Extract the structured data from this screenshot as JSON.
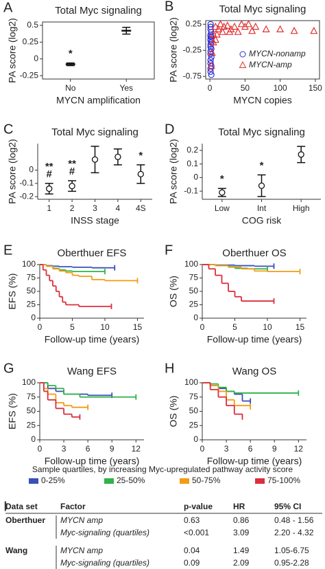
{
  "chart_data": [
    {
      "type": "errorbar",
      "label": "A",
      "title": "Total Myc signaling",
      "xlabel": "MYCN amplification",
      "ylabel": "PA score (log2)",
      "categories": [
        "No",
        "Yes"
      ],
      "values": [
        -0.08,
        0.42
      ],
      "errors": [
        0.02,
        0.05
      ],
      "marker": "dash",
      "frame": true,
      "ylim": [
        -0.3,
        0.55
      ],
      "yticks": [
        0.5,
        0.25,
        0,
        -0.25
      ],
      "annotations": [
        {
          "category": "No",
          "text": "*"
        }
      ]
    },
    {
      "type": "scatter",
      "label": "B",
      "title": "Total Myc signaling",
      "xlabel": "MYCN copies",
      "ylabel": "PA score (log2)",
      "frame": true,
      "xlim": [
        -6,
        156
      ],
      "xticks": [
        0,
        50,
        100,
        150
      ],
      "ylim": [
        -0.8,
        0.32
      ],
      "yticks": [
        0.25,
        -0.25,
        -0.75
      ],
      "legend_loc": "lower right",
      "series": [
        {
          "name": "MYCN-nonamp",
          "color": "#2b2bd6",
          "marker": "circle",
          "x": [
            1,
            1,
            1,
            2,
            1,
            1,
            2,
            1,
            1,
            2,
            1,
            1,
            2,
            1,
            1,
            2,
            1,
            1,
            2,
            1,
            1,
            2
          ],
          "values": [
            0.25,
            0.2,
            0.15,
            0.1,
            0.05,
            0.02,
            0,
            -0.03,
            -0.06,
            -0.1,
            -0.14,
            -0.18,
            -0.22,
            -0.27,
            -0.32,
            -0.38,
            -0.44,
            -0.5,
            -0.55,
            -0.6,
            -0.66,
            -0.72
          ]
        },
        {
          "name": "MYCN-amp",
          "color": "#e03030",
          "marker": "triangle",
          "x": [
            2,
            3,
            5,
            5,
            8,
            8,
            10,
            12,
            15,
            18,
            20,
            25,
            28,
            30,
            35,
            40,
            45,
            50,
            55,
            60,
            65,
            80,
            100,
            120,
            148
          ],
          "values": [
            -0.55,
            -0.3,
            0.05,
            -0.1,
            0.2,
            -0.05,
            0.05,
            0.15,
            0.25,
            0.1,
            0.2,
            0.22,
            0.1,
            0.15,
            0.2,
            0.1,
            0.25,
            0.2,
            0.25,
            0.12,
            0.2,
            0.15,
            0.15,
            0.12,
            0.12
          ]
        }
      ]
    },
    {
      "type": "errorbar",
      "label": "C",
      "title": "Total Myc signaling",
      "xlabel": "INSS stage",
      "ylabel": "PA score (log2)",
      "categories": [
        "1",
        "2",
        "3",
        "4",
        "4S"
      ],
      "values": [
        -0.14,
        -0.12,
        0.08,
        0.1,
        -0.03
      ],
      "errors": [
        0.04,
        0.04,
        0.1,
        0.06,
        0.07
      ],
      "marker": "circle",
      "ylim": [
        -0.22,
        0.2
      ],
      "yticks": [
        0,
        -0.1,
        -0.2
      ],
      "annotations": [
        {
          "category": "1",
          "text": "#"
        },
        {
          "category": "1",
          "text": "**"
        },
        {
          "category": "2",
          "text": "#"
        },
        {
          "category": "2",
          "text": "**"
        },
        {
          "category": "4S",
          "text": "*"
        }
      ]
    },
    {
      "type": "errorbar",
      "label": "D",
      "title": "Total Myc signaling",
      "xlabel": "COG risk",
      "ylabel": "PA score (log2)",
      "categories": [
        "Low",
        "Int",
        "High"
      ],
      "values": [
        -0.11,
        -0.06,
        0.17
      ],
      "errors": [
        0.03,
        0.08,
        0.06
      ],
      "marker": "circle",
      "ylim": [
        -0.16,
        0.25
      ],
      "yticks": [
        0.2,
        0.1,
        0,
        -0.1
      ],
      "annotations": [
        {
          "category": "Low",
          "text": "*"
        },
        {
          "category": "Int",
          "text": "*"
        }
      ]
    },
    {
      "type": "km",
      "label": "E",
      "title": "Oberthuer EFS",
      "xlabel": "Follow-up time (years)",
      "ylabel": "EFS (%)",
      "xlim": [
        0,
        16
      ],
      "xticks": [
        0,
        5,
        10,
        15
      ],
      "ylim": [
        0,
        100
      ],
      "yticks": [
        0,
        25,
        50,
        75,
        100
      ],
      "series": [
        {
          "color": "#3b4fb8",
          "x": [
            0,
            1,
            2,
            3,
            5,
            8,
            10,
            11.5
          ],
          "values": [
            100,
            98,
            97,
            96,
            95,
            94,
            94,
            94
          ]
        },
        {
          "color": "#2fb34a",
          "x": [
            0,
            1,
            2,
            3,
            4,
            5,
            7,
            10
          ],
          "values": [
            100,
            97,
            93,
            90,
            88,
            87,
            87,
            87
          ]
        },
        {
          "color": "#f39c12",
          "x": [
            0,
            1,
            2,
            3,
            4,
            5,
            6,
            8,
            10,
            15
          ],
          "values": [
            100,
            97,
            92,
            88,
            85,
            80,
            78,
            72,
            70,
            70
          ]
        },
        {
          "color": "#d9303c",
          "x": [
            0,
            0.5,
            1,
            1.5,
            2,
            2.5,
            3,
            3.5,
            4,
            6,
            11
          ],
          "values": [
            100,
            90,
            80,
            70,
            60,
            50,
            40,
            30,
            25,
            22,
            22
          ]
        }
      ]
    },
    {
      "type": "km",
      "label": "F",
      "title": "Oberthuer OS",
      "xlabel": "Follow-up time (years)",
      "ylabel": "OS (%)",
      "xlim": [
        0,
        16
      ],
      "xticks": [
        0,
        5,
        10,
        15
      ],
      "ylim": [
        0,
        100
      ],
      "yticks": [
        0,
        25,
        50,
        75,
        100
      ],
      "series": [
        {
          "color": "#3b4fb8",
          "x": [
            0,
            2,
            5,
            8,
            11
          ],
          "values": [
            100,
            99,
            98,
            97,
            97
          ]
        },
        {
          "color": "#2fb34a",
          "x": [
            0,
            2,
            4,
            5,
            7,
            10
          ],
          "values": [
            100,
            98,
            96,
            93,
            92,
            92
          ]
        },
        {
          "color": "#f39c12",
          "x": [
            0,
            2,
            4,
            6,
            8,
            10,
            15
          ],
          "values": [
            100,
            98,
            95,
            92,
            88,
            87,
            87
          ]
        },
        {
          "color": "#d9303c",
          "x": [
            0,
            1,
            2,
            3,
            4,
            5,
            6,
            11
          ],
          "values": [
            100,
            92,
            80,
            65,
            50,
            40,
            32,
            32
          ]
        }
      ]
    },
    {
      "type": "km",
      "label": "G",
      "title": "Wang EFS",
      "xlabel": "Follow-up time (years)",
      "ylabel": "EFS (%)",
      "xlim": [
        0,
        13
      ],
      "xticks": [
        0,
        3,
        6,
        9,
        12
      ],
      "ylim": [
        0,
        100
      ],
      "yticks": [
        0,
        25,
        50,
        75,
        100
      ],
      "series": [
        {
          "color": "#3b4fb8",
          "x": [
            0,
            1,
            2,
            3,
            5,
            6,
            9
          ],
          "values": [
            100,
            90,
            85,
            80,
            80,
            78,
            78
          ]
        },
        {
          "color": "#2fb34a",
          "x": [
            0,
            1,
            2,
            3,
            5,
            12
          ],
          "values": [
            100,
            95,
            90,
            80,
            75,
            75
          ]
        },
        {
          "color": "#f39c12",
          "x": [
            0,
            0.5,
            1,
            2,
            3,
            4,
            6
          ],
          "values": [
            100,
            90,
            80,
            65,
            60,
            57,
            57
          ]
        },
        {
          "color": "#d9303c",
          "x": [
            0,
            0.5,
            1,
            2,
            3,
            4,
            5
          ],
          "values": [
            100,
            85,
            70,
            55,
            45,
            40,
            40
          ]
        }
      ]
    },
    {
      "type": "km",
      "label": "H",
      "title": "Wang OS",
      "xlabel": "Follow-up time (years)",
      "ylabel": "OS (%)",
      "xlim": [
        0,
        13
      ],
      "xticks": [
        0,
        3,
        6,
        9,
        12
      ],
      "ylim": [
        0,
        100
      ],
      "yticks": [
        0,
        25,
        50,
        75,
        100
      ],
      "series": [
        {
          "color": "#3b4fb8",
          "x": [
            0,
            1,
            2,
            3,
            4,
            5,
            6
          ],
          "values": [
            100,
            95,
            90,
            85,
            80,
            68,
            68
          ]
        },
        {
          "color": "#2fb34a",
          "x": [
            0,
            1,
            2,
            3,
            4,
            12
          ],
          "values": [
            100,
            98,
            92,
            85,
            82,
            82
          ]
        },
        {
          "color": "#f39c12",
          "x": [
            0,
            1,
            2,
            3,
            4,
            6
          ],
          "values": [
            100,
            95,
            85,
            70,
            60,
            58
          ]
        },
        {
          "color": "#d9303c",
          "x": [
            0,
            1,
            2,
            3,
            4,
            5
          ],
          "values": [
            100,
            88,
            75,
            60,
            45,
            40
          ]
        }
      ]
    }
  ],
  "legend": {
    "title": "Sample quartiles, by increasing Myc-upregulated pathway activity score",
    "items": [
      {
        "name": "0-25%",
        "color": "#3b4fb8"
      },
      {
        "name": "25-50%",
        "color": "#2fb34a"
      },
      {
        "name": "50-75%",
        "color": "#f39c12"
      },
      {
        "name": "75-100%",
        "color": "#d9303c"
      }
    ]
  },
  "table": {
    "label": "I",
    "headers": [
      "Data set",
      "Factor",
      "p-value",
      "HR",
      "95% CI"
    ],
    "rows": [
      [
        "Oberthuer",
        "MYCN amp",
        "0.63",
        "0.86",
        "0.48 - 1.56"
      ],
      [
        null,
        "Myc-signaling (quartiles)",
        "<0.001",
        "3.09",
        "2.20 - 4.32"
      ],
      [
        "Wang",
        "MYCN amp",
        "0.04",
        "1.49",
        "1.05-6.75"
      ],
      [
        null,
        "Myc-signaling (quartiles)",
        "0.09",
        "2.09",
        "0.95-2.28"
      ]
    ]
  }
}
